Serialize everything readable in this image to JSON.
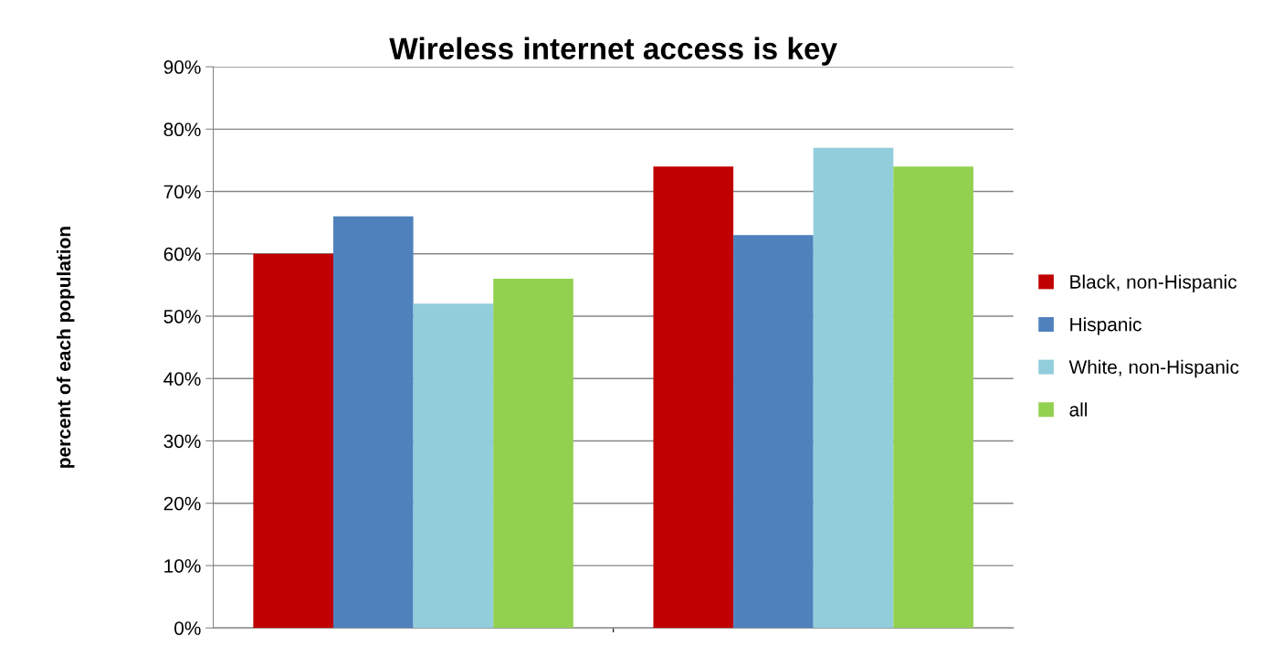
{
  "chart_data": {
    "type": "bar",
    "title": "Wireless internet access is key",
    "ylabel": "percent of each population",
    "categories": [
      null,
      null
    ],
    "series": [
      {
        "name": "Black, non-Hispanic",
        "color": "#c00000",
        "values": [
          60,
          74
        ]
      },
      {
        "name": "Hispanic",
        "color": "#4f81bd",
        "values": [
          66,
          63
        ]
      },
      {
        "name": "White, non-Hispanic",
        "color": "#92cddc",
        "values": [
          52,
          77
        ]
      },
      {
        "name": "all",
        "color": "#92d050",
        "values": [
          56,
          74
        ]
      }
    ],
    "ylim": [
      0,
      90
    ],
    "yticks": [
      {
        "value": 0,
        "label": "0%"
      },
      {
        "value": 10,
        "label": "10%"
      },
      {
        "value": 20,
        "label": "20%"
      },
      {
        "value": 30,
        "label": "30%"
      },
      {
        "value": 40,
        "label": "40%"
      },
      {
        "value": 50,
        "label": "50%"
      },
      {
        "value": 60,
        "label": "60%"
      },
      {
        "value": 70,
        "label": "70%"
      },
      {
        "value": 80,
        "label": "80%"
      },
      {
        "value": 90,
        "label": "90%"
      }
    ],
    "grid": "y",
    "legend": "right"
  }
}
